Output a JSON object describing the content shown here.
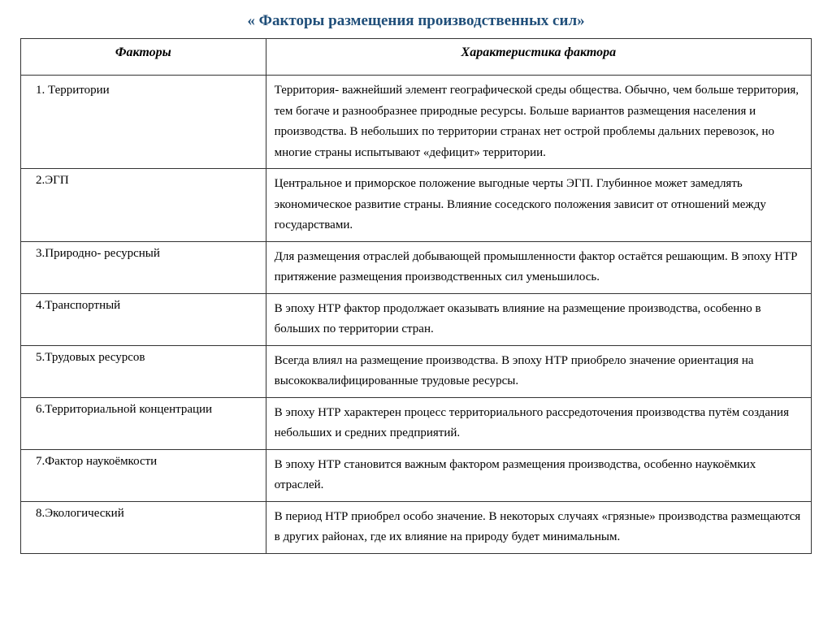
{
  "title": "« Факторы размещения производственных сил»",
  "headers": {
    "col1": "Факторы",
    "col2": "Характеристика фактора"
  },
  "rows": [
    {
      "factor": "1. Территории",
      "description": "Территория- важнейший элемент географической среды общества. Обычно, чем больше территория, тем богаче и разнообразнее природные ресурсы. Больше вариантов размещения населения и производства. В небольших по территории странах нет острой проблемы дальних перевозок, но многие страны испытывают «дефицит» территории."
    },
    {
      "factor": "2.ЭГП",
      "description": "Центральное и приморское положение выгодные черты ЭГП. Глубинное может замедлять экономическое развитие страны. Влияние соседского положения зависит от отношений между государствами."
    },
    {
      "factor": "3.Природно- ресурсный",
      "description": "Для размещения отраслей добывающей промышленности фактор остаётся решающим. В эпоху НТР притяжение размещения производственных сил уменьшилось."
    },
    {
      "factor": "4.Транспортный",
      "description": "В эпоху НТР фактор продолжает оказывать влияние на размещение производства, особенно в больших по территории стран."
    },
    {
      "factor": "5.Трудовых ресурсов",
      "description": "Всегда влиял на размещение производства. В эпоху НТР приобрело значение ориентация на высококвалифицированные трудовые ресурсы."
    },
    {
      "factor": "6.Территориальной концентрации",
      "description": "В эпоху НТР характерен процесс территориального рассредоточения производства путём создания небольших и средних предприятий."
    },
    {
      "factor": "7.Фактор наукоёмкости",
      "description": "В эпоху НТР становится важным фактором размещения производства, особенно наукоёмких отраслей."
    },
    {
      "factor": "8.Экологический",
      "description": "В период НТР приобрел особо  значение. В некоторых случаях «грязные» производства размещаются в других районах, где их влияние на природу будет минимальным."
    }
  ]
}
